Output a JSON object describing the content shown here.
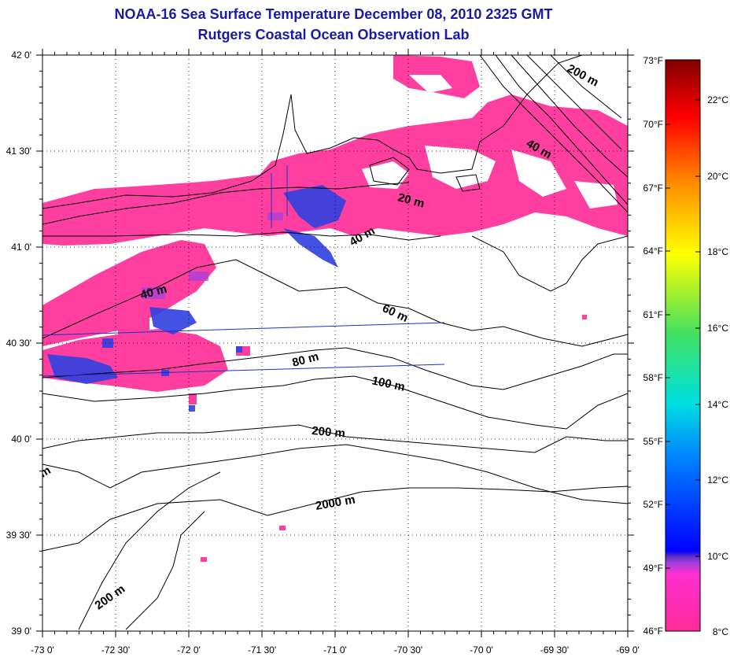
{
  "titles": {
    "line1": "NOAA-16 Sea Surface Temperature December 08, 2010 2325 GMT",
    "line2": "Rutgers Coastal Ocean Observation Lab"
  },
  "map": {
    "lon_labels": [
      "-73 0'",
      "-72 30'",
      "-72 0'",
      "-71 30'",
      "-71 0'",
      "-70 30'",
      "-70 0'",
      "-69 30'",
      "-69 0'"
    ],
    "lat_labels": [
      "42 0'",
      "41 30'",
      "41 0'",
      "40 30'",
      "40 0'",
      "39 30'",
      "39 0'"
    ],
    "contour_labels": [
      "200 m",
      "40 m",
      "20 m",
      "40 m",
      "40 m",
      "60 m",
      "80 m",
      "100 m",
      "200 m",
      "2000 m",
      "200 m",
      "m"
    ],
    "colors": {
      "land": "#ffffff",
      "sst_cold": "#ff3fa0",
      "sst_blue": "#3040e0",
      "grid": "#000000"
    }
  },
  "colorbar": {
    "f_labels": [
      "73°F",
      "70°F",
      "67°F",
      "64°F",
      "61°F",
      "58°F",
      "55°F",
      "52°F",
      "49°F",
      "46°F"
    ],
    "c_labels": [
      "22°C",
      "20°C",
      "18°C",
      "16°C",
      "14°C",
      "12°C",
      "10°C",
      "8°C"
    ]
  }
}
